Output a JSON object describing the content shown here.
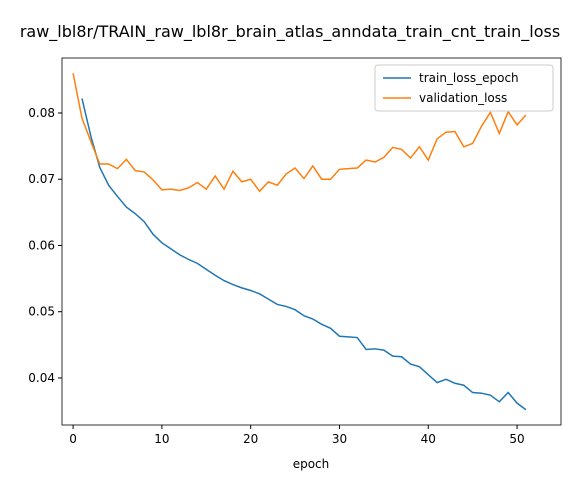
{
  "chart_data": {
    "type": "line",
    "title": "raw_lbl8r/TRAIN_raw_lbl8r_brain_atlas_anndata_train_cnt_train_loss",
    "xlabel": "epoch",
    "xlim": [
      -1.25,
      54.95
    ],
    "ylim": [
      0.0329,
      0.0883
    ],
    "xticks": [
      0,
      10,
      20,
      30,
      40,
      50
    ],
    "yticks": [
      {
        "value": 0.04,
        "label": "0.04"
      },
      {
        "value": 0.05,
        "label": "0.05"
      },
      {
        "value": 0.06,
        "label": "0.06"
      },
      {
        "value": 0.07,
        "label": "0.07"
      },
      {
        "value": 0.08,
        "label": "0.08"
      }
    ],
    "legend": "upper right",
    "series": [
      {
        "name": "train_loss_epoch",
        "color": "#1f77b4",
        "x": [
          1,
          2,
          3,
          4,
          5,
          6,
          7,
          8,
          9,
          10,
          11,
          12,
          13,
          14,
          15,
          16,
          17,
          18,
          19,
          20,
          21,
          22,
          23,
          24,
          25,
          26,
          27,
          28,
          29,
          30,
          31,
          32,
          33,
          34,
          35,
          36,
          37,
          38,
          39,
          40,
          41,
          42,
          43,
          44,
          45,
          46,
          47,
          48,
          49,
          50,
          51
        ],
        "values": [
          0.0822,
          0.0765,
          0.0718,
          0.0691,
          0.0674,
          0.0658,
          0.0648,
          0.0636,
          0.0617,
          0.0604,
          0.0595,
          0.0586,
          0.0579,
          0.0573,
          0.0564,
          0.0555,
          0.0547,
          0.0541,
          0.0536,
          0.0532,
          0.0527,
          0.0519,
          0.0511,
          0.0508,
          0.0503,
          0.0494,
          0.0489,
          0.0481,
          0.0475,
          0.0463,
          0.0462,
          0.0461,
          0.0443,
          0.0444,
          0.0442,
          0.0433,
          0.0432,
          0.0421,
          0.0417,
          0.0405,
          0.0393,
          0.0398,
          0.0392,
          0.0389,
          0.0378,
          0.0377,
          0.0374,
          0.0364,
          0.0378,
          0.0362,
          0.0352
        ]
      },
      {
        "name": "validation_loss",
        "color": "#ff7f0e",
        "x": [
          0,
          1,
          2,
          3,
          4,
          5,
          6,
          7,
          8,
          9,
          10,
          11,
          12,
          13,
          14,
          15,
          16,
          17,
          18,
          19,
          20,
          21,
          22,
          23,
          24,
          25,
          26,
          27,
          28,
          29,
          30,
          31,
          32,
          33,
          34,
          35,
          36,
          37,
          38,
          39,
          40,
          41,
          42,
          43,
          44,
          45,
          46,
          47,
          48,
          49,
          50,
          51
        ],
        "values": [
          0.086,
          0.0792,
          0.0757,
          0.0723,
          0.0723,
          0.0716,
          0.073,
          0.0713,
          0.0711,
          0.0699,
          0.0684,
          0.0685,
          0.0683,
          0.0687,
          0.0695,
          0.0685,
          0.0705,
          0.0685,
          0.0712,
          0.0696,
          0.07,
          0.0682,
          0.0696,
          0.0691,
          0.0708,
          0.0717,
          0.0701,
          0.072,
          0.07,
          0.07,
          0.0715,
          0.0716,
          0.0717,
          0.0729,
          0.0726,
          0.0733,
          0.0748,
          0.0745,
          0.0732,
          0.0749,
          0.0729,
          0.0761,
          0.0771,
          0.0772,
          0.0749,
          0.0754,
          0.078,
          0.0801,
          0.0769,
          0.0802,
          0.0782,
          0.0797
        ]
      }
    ]
  }
}
